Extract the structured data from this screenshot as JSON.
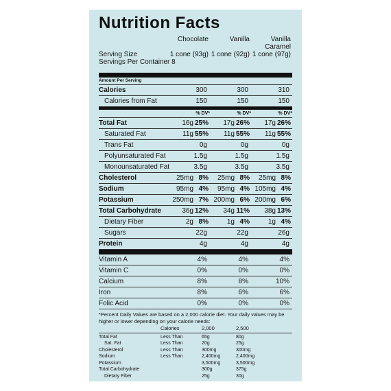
{
  "title": "Nutrition Facts",
  "products": [
    {
      "name": "Chocolate",
      "serving": "1 cone (93g)"
    },
    {
      "name": "Vanilla",
      "serving": "1 cone (92g)"
    },
    {
      "name": "Vanilla Caramel",
      "serving": "1 cone (97g)"
    }
  ],
  "serving_size_label": "Serving Size",
  "servings_per_container": "Servings Per Container 8",
  "amount_per_serving": "Amount Per Serving",
  "calories": [
    {
      "label": "Calories",
      "bold": true,
      "cells": [
        [
          "300"
        ],
        [
          "300"
        ],
        [
          "310"
        ]
      ]
    },
    {
      "label": "Calories from Fat",
      "indent": true,
      "cells": [
        [
          "150"
        ],
        [
          "150"
        ],
        [
          "150"
        ]
      ]
    }
  ],
  "dv_header": [
    "% DV*",
    "% DV*",
    "% DV*"
  ],
  "nutrients": [
    {
      "label": "Total Fat",
      "bold": true,
      "cells": [
        [
          "16g",
          "25%"
        ],
        [
          "17g",
          "26%"
        ],
        [
          "17g",
          "26%"
        ]
      ]
    },
    {
      "label": "Saturated Fat",
      "indent": true,
      "cells": [
        [
          "11g",
          "55%"
        ],
        [
          "11g",
          "55%"
        ],
        [
          "11g",
          "55%"
        ]
      ]
    },
    {
      "label": "Trans Fat",
      "indent": true,
      "cells": [
        [
          "0g"
        ],
        [
          "0g"
        ],
        [
          "0g"
        ]
      ]
    },
    {
      "label": "Polyunsaturated Fat",
      "indent": true,
      "cells": [
        [
          "1.5g"
        ],
        [
          "1.5g"
        ],
        [
          "1.5g"
        ]
      ]
    },
    {
      "label": "Monounsaturated Fat",
      "indent": true,
      "cells": [
        [
          "3.5g"
        ],
        [
          "3.5g"
        ],
        [
          "3.5g"
        ]
      ]
    },
    {
      "label": "Cholesterol",
      "bold": true,
      "cells": [
        [
          "25mg",
          "8%"
        ],
        [
          "25mg",
          "8%"
        ],
        [
          "25mg",
          "8%"
        ]
      ]
    },
    {
      "label": "Sodium",
      "bold": true,
      "cells": [
        [
          "95mg",
          "4%"
        ],
        [
          "95mg",
          "4%"
        ],
        [
          "105mg",
          "4%"
        ]
      ]
    },
    {
      "label": "Potassium",
      "bold": true,
      "cells": [
        [
          "250mg",
          "7%"
        ],
        [
          "200mg",
          "6%"
        ],
        [
          "200mg",
          "6%"
        ]
      ]
    },
    {
      "label": "Total Carbohydrate",
      "bold": true,
      "cells": [
        [
          "36g",
          "12%"
        ],
        [
          "34g",
          "11%"
        ],
        [
          "38g",
          "13%"
        ]
      ]
    },
    {
      "label": "Dietary Fiber",
      "indent": true,
      "cells": [
        [
          "2g",
          "8%"
        ],
        [
          "1g",
          "4%"
        ],
        [
          "1g",
          "4%"
        ]
      ]
    },
    {
      "label": "Sugars",
      "indent": true,
      "cells": [
        [
          "22g"
        ],
        [
          "22g"
        ],
        [
          "26g"
        ]
      ]
    },
    {
      "label": "Protein",
      "bold": true,
      "cells": [
        [
          "4g"
        ],
        [
          "4g"
        ],
        [
          "4g"
        ]
      ]
    }
  ],
  "vitamins": [
    {
      "label": "Vitamin A",
      "cells": [
        [
          "4%"
        ],
        [
          "4%"
        ],
        [
          "4%"
        ]
      ]
    },
    {
      "label": "Vitamin C",
      "cells": [
        [
          "0%"
        ],
        [
          "0%"
        ],
        [
          "0%"
        ]
      ]
    },
    {
      "label": "Calcium",
      "cells": [
        [
          "8%"
        ],
        [
          "8%"
        ],
        [
          "10%"
        ]
      ]
    },
    {
      "label": "Iron",
      "cells": [
        [
          "8%"
        ],
        [
          "6%"
        ],
        [
          "6%"
        ]
      ]
    },
    {
      "label": "Folic Acid",
      "cells": [
        [
          "0%"
        ],
        [
          "0%"
        ],
        [
          "0%"
        ]
      ]
    }
  ],
  "footnote": "*Percent Daily Values are based on a 2,000 calorie diet. Your daily values may be higher or lower depending on your calorie needs:",
  "dv_table": {
    "header": [
      "Calories",
      "2,000",
      "2,500"
    ],
    "rows": [
      [
        "Total Fat",
        "Less Than",
        "65g",
        "80g"
      ],
      [
        "Sat. Fat",
        "Less Than",
        "20g",
        "25g"
      ],
      [
        "Cholesterol",
        "Less Than",
        "300mg",
        "300mg"
      ],
      [
        "Sodium",
        "Less Than",
        "2,400mg",
        "2,400mg"
      ],
      [
        "Potassium",
        "3,500mg",
        "3,500mg"
      ],
      [
        "Total Carbohydrate",
        "300g",
        "375g"
      ],
      [
        "Dietary Fiber",
        "25g",
        "30g"
      ]
    ]
  }
}
